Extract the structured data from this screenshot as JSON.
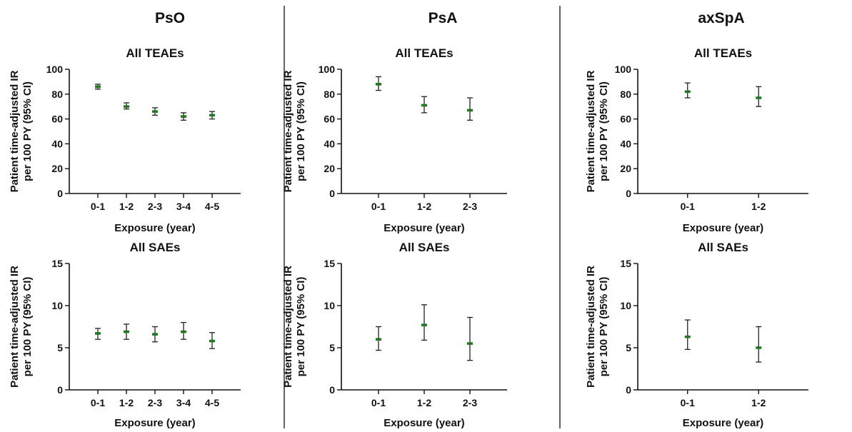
{
  "colors": {
    "marker": "#1f7a1f",
    "errorbar": "#222222",
    "axis": "#111111"
  },
  "chart_data": [
    {
      "type": "scatter",
      "column_title": "PsO",
      "title": "All TEAEs",
      "xlabel": "Exposure (year)",
      "ylabel": [
        "Patient time-adjusted IR",
        "per 100 PY (95% CI)"
      ],
      "categories": [
        "0-1",
        "1-2",
        "2-3",
        "3-4",
        "4-5"
      ],
      "values": [
        86,
        70,
        66,
        62,
        63
      ],
      "ci_low": [
        84,
        68,
        63,
        59,
        60
      ],
      "ci_high": [
        88,
        73,
        69,
        65,
        66
      ],
      "ylim": [
        0,
        100
      ],
      "yticks": [
        "0",
        "20",
        "40",
        "60",
        "80",
        "100"
      ],
      "grid": false
    },
    {
      "type": "scatter",
      "column_title": "PsA",
      "title": "All TEAEs",
      "xlabel": "Exposure (year)",
      "ylabel": [
        "Patient time-adjusted IR",
        "per 100 PY (95% CI)"
      ],
      "categories": [
        "0-1",
        "1-2",
        "2-3"
      ],
      "values": [
        88,
        71,
        67
      ],
      "ci_low": [
        83,
        65,
        59
      ],
      "ci_high": [
        94,
        78,
        77
      ],
      "ylim": [
        0,
        100
      ],
      "yticks": [
        "0",
        "20",
        "40",
        "60",
        "80",
        "100"
      ],
      "grid": false
    },
    {
      "type": "scatter",
      "column_title": "axSpA",
      "title": "All TEAEs",
      "xlabel": "Exposure (year)",
      "ylabel": [
        "Patient time-adjusted IR",
        "per 100 PY (95% CI)"
      ],
      "categories": [
        "0-1",
        "1-2"
      ],
      "values": [
        82,
        77
      ],
      "ci_low": [
        77,
        70
      ],
      "ci_high": [
        89,
        86
      ],
      "ylim": [
        0,
        100
      ],
      "yticks": [
        "0",
        "20",
        "40",
        "60",
        "80",
        "100"
      ],
      "grid": false
    },
    {
      "type": "scatter",
      "title": "All SAEs",
      "xlabel": "Exposure (year)",
      "ylabel": [
        "Patient time-adjusted IR",
        "per 100 PY (95% CI)"
      ],
      "categories": [
        "0-1",
        "1-2",
        "2-3",
        "3-4",
        "4-5"
      ],
      "values": [
        6.7,
        6.9,
        6.6,
        6.9,
        5.8
      ],
      "ci_low": [
        6.0,
        6.0,
        5.7,
        6.0,
        4.9
      ],
      "ci_high": [
        7.3,
        7.8,
        7.5,
        8.0,
        6.8
      ],
      "ylim": [
        0,
        15
      ],
      "yticks": [
        "0",
        "5",
        "10",
        "15"
      ],
      "grid": false
    },
    {
      "type": "scatter",
      "title": "All SAEs",
      "xlabel": "Exposure (year)",
      "ylabel": [
        "Patient time-adjusted IR",
        "per 100 PY (95% CI)"
      ],
      "categories": [
        "0-1",
        "1-2",
        "2-3"
      ],
      "values": [
        6.0,
        7.7,
        5.5
      ],
      "ci_low": [
        4.7,
        5.9,
        3.5
      ],
      "ci_high": [
        7.5,
        10.1,
        8.6
      ],
      "ylim": [
        0,
        15
      ],
      "yticks": [
        "0",
        "5",
        "10",
        "15"
      ],
      "grid": false
    },
    {
      "type": "scatter",
      "title": "All SAEs",
      "xlabel": "Exposure (year)",
      "ylabel": [
        "Patient time-adjusted IR",
        "per 100 PY (95% CI)"
      ],
      "categories": [
        "0-1",
        "1-2"
      ],
      "values": [
        6.3,
        5.0
      ],
      "ci_low": [
        4.8,
        3.3
      ],
      "ci_high": [
        8.3,
        7.5
      ],
      "ylim": [
        0,
        15
      ],
      "yticks": [
        "0",
        "5",
        "10",
        "15"
      ],
      "grid": false
    }
  ]
}
